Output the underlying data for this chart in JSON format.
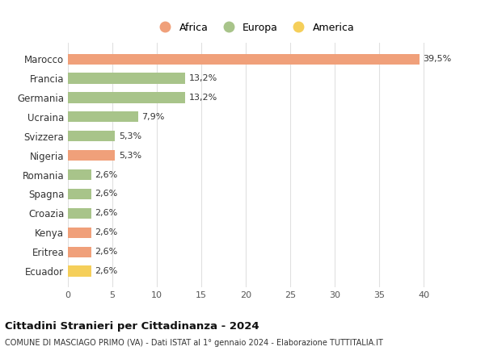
{
  "categories": [
    "Ecuador",
    "Eritrea",
    "Kenya",
    "Croazia",
    "Spagna",
    "Romania",
    "Nigeria",
    "Svizzera",
    "Ucraina",
    "Germania",
    "Francia",
    "Marocco"
  ],
  "values": [
    2.6,
    2.6,
    2.6,
    2.6,
    2.6,
    2.6,
    5.3,
    5.3,
    7.9,
    13.2,
    13.2,
    39.5
  ],
  "labels": [
    "2,6%",
    "2,6%",
    "2,6%",
    "2,6%",
    "2,6%",
    "2,6%",
    "5,3%",
    "5,3%",
    "7,9%",
    "13,2%",
    "13,2%",
    "39,5%"
  ],
  "colors": [
    "#f5cf5a",
    "#f0a07a",
    "#f0a07a",
    "#a8c48a",
    "#a8c48a",
    "#a8c48a",
    "#f0a07a",
    "#a8c48a",
    "#a8c48a",
    "#a8c48a",
    "#a8c48a",
    "#f0a07a"
  ],
  "continent_colors": {
    "Africa": "#f0a07a",
    "Europa": "#a8c48a",
    "America": "#f5cf5a"
  },
  "legend_labels": [
    "Africa",
    "Europa",
    "America"
  ],
  "title_bold": "Cittadini Stranieri per Cittadinanza - 2024",
  "subtitle": "COMUNE DI MASCIAGO PRIMO (VA) - Dati ISTAT al 1° gennaio 2024 - Elaborazione TUTTITALIA.IT",
  "xlim": [
    0,
    42
  ],
  "xticks": [
    0,
    5,
    10,
    15,
    20,
    25,
    30,
    35,
    40
  ],
  "background_color": "#ffffff",
  "grid_color": "#e0e0e0",
  "bar_height": 0.55
}
